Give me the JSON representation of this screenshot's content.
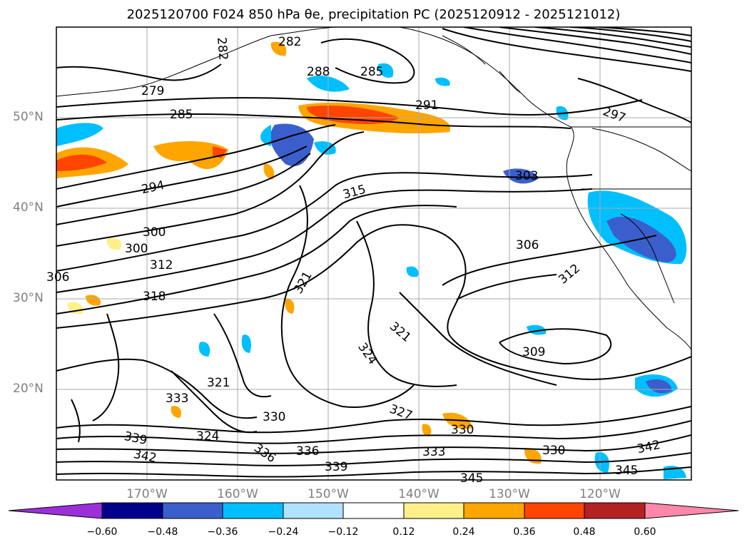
{
  "title": "2025120700 F024 850 hPa θe, precipitation PC (2025120912 - 2025121012)",
  "map": {
    "lat_labels": [
      "50°N",
      "40°N",
      "30°N",
      "20°N"
    ],
    "lon_labels": [
      "170°W",
      "160°W",
      "150°W",
      "140°W",
      "130°W",
      "120°W"
    ],
    "contour_labels": [
      "282",
      "282",
      "288",
      "285",
      "279",
      "285",
      "291",
      "297",
      "294",
      "315",
      "303",
      "300",
      "300",
      "312",
      "306",
      "318",
      "321",
      "306",
      "312",
      "309",
      "321",
      "324",
      "321",
      "333",
      "330",
      "327",
      "330",
      "324",
      "336",
      "333",
      "330",
      "339",
      "342",
      "336",
      "339",
      "345",
      "342",
      "345"
    ]
  },
  "colorbar": {
    "ticks": [
      "−0.60",
      "−0.48",
      "−0.36",
      "−0.24",
      "−0.12",
      "0.12",
      "0.24",
      "0.36",
      "0.48",
      "0.60"
    ],
    "colors": [
      "#9b30d9",
      "#00008b",
      "#3a5fcd",
      "#00bfff",
      "#b0e2ff",
      "#ffffff",
      "#fff08a",
      "#ffa500",
      "#ff4500",
      "#b22222",
      "#ff88aa"
    ]
  }
}
